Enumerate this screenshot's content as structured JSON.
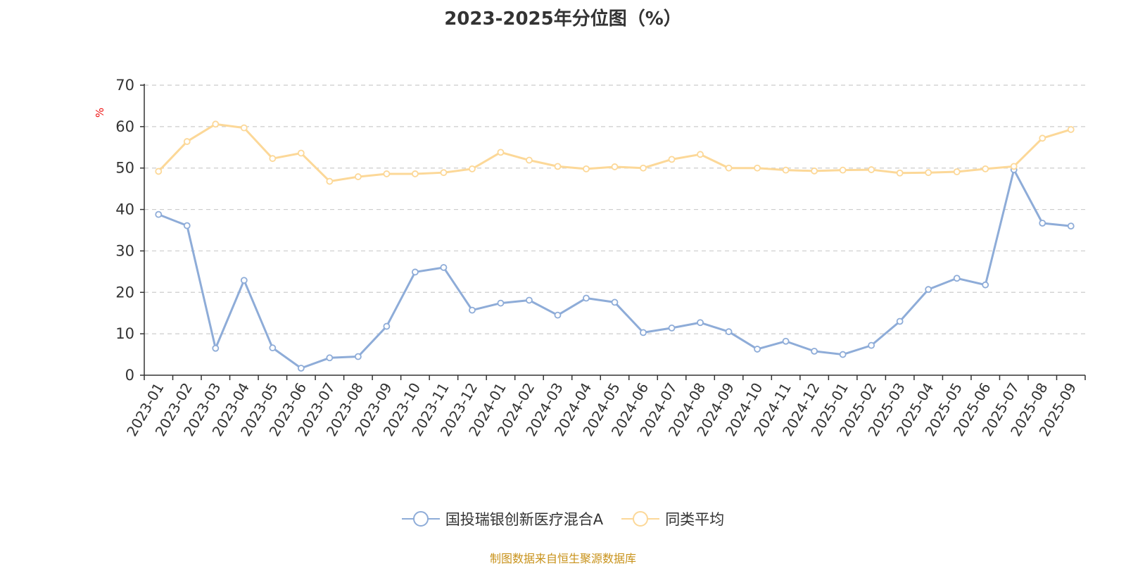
{
  "chart_data": {
    "type": "line",
    "title": "2023-2025年分位图（%）",
    "ylabel": "%",
    "xlabel": "",
    "ylim": [
      0,
      70
    ],
    "yticks": [
      0,
      10,
      20,
      30,
      40,
      50,
      60,
      70
    ],
    "grid": true,
    "legend_position": "bottom-center",
    "categories": [
      "2023-01",
      "2023-02",
      "2023-03",
      "2023-04",
      "2023-05",
      "2023-06",
      "2023-07",
      "2023-08",
      "2023-09",
      "2023-10",
      "2023-11",
      "2023-12",
      "2024-01",
      "2024-02",
      "2024-03",
      "2024-04",
      "2024-05",
      "2024-06",
      "2024-07",
      "2024-08",
      "2024-09",
      "2024-10",
      "2024-11",
      "2024-12",
      "2025-01",
      "2025-02",
      "2025-03",
      "2025-04",
      "2025-05",
      "2025-06",
      "2025-07",
      "2025-08",
      "2025-09"
    ],
    "series": [
      {
        "name": "国投瑞银创新医疗混合A",
        "color": "#8eacd8",
        "values": [
          38.8,
          36.1,
          6.5,
          22.9,
          6.6,
          1.7,
          4.2,
          4.5,
          11.8,
          24.9,
          26.0,
          15.7,
          17.4,
          18.1,
          14.5,
          18.6,
          17.6,
          10.3,
          11.4,
          12.7,
          10.5,
          6.3,
          8.2,
          5.8,
          5.0,
          7.2,
          13.0,
          20.7,
          23.4,
          21.8,
          49.6,
          36.7,
          36.0
        ]
      },
      {
        "name": "同类平均",
        "color": "#fcd898",
        "values": [
          49.2,
          56.4,
          60.6,
          59.7,
          52.3,
          53.6,
          46.8,
          47.9,
          48.6,
          48.6,
          48.9,
          49.8,
          53.8,
          51.9,
          50.4,
          49.8,
          50.3,
          50.0,
          52.1,
          53.3,
          50.0,
          50.0,
          49.5,
          49.3,
          49.5,
          49.6,
          48.8,
          48.9,
          49.1,
          49.8,
          50.4,
          57.2,
          59.3
        ]
      }
    ]
  },
  "footer": {
    "source_text": "制图数据来自恒生聚源数据库"
  }
}
